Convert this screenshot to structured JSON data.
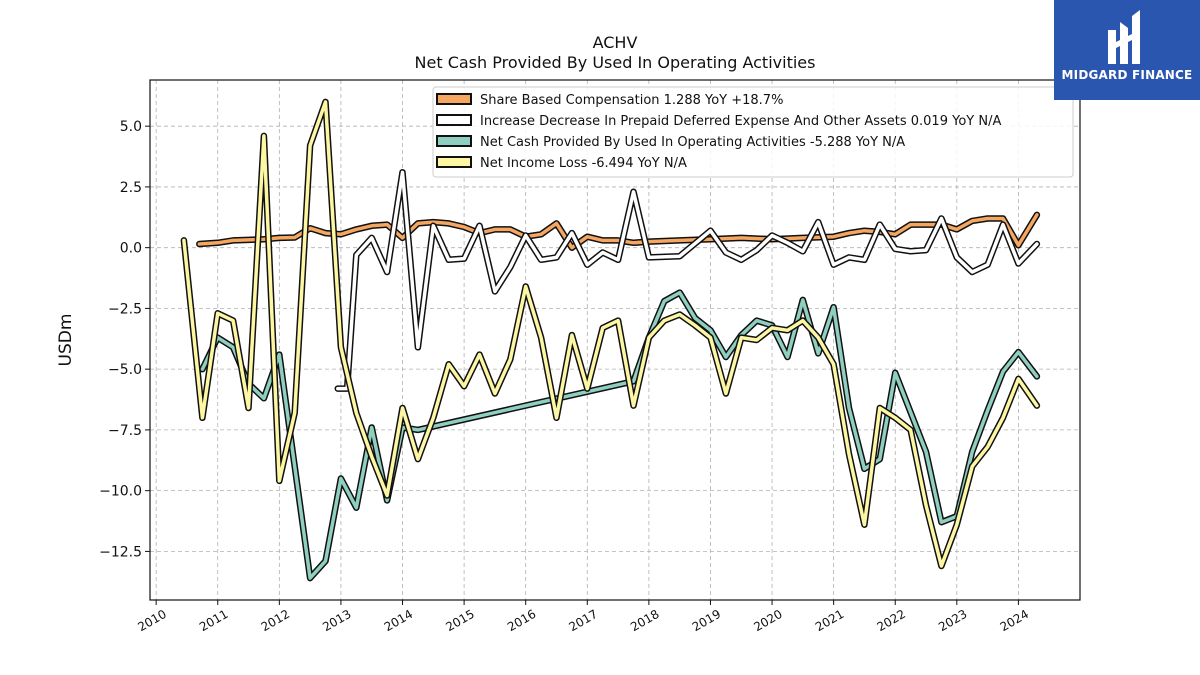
{
  "chart_data": {
    "type": "line",
    "title": "ACHV",
    "subtitle": "Net Cash Provided By Used In Operating Activities",
    "ylabel": "USDm",
    "xlabel": "",
    "xlim": [
      2009.9,
      2025.0
    ],
    "ylim": [
      -14.5,
      6.9
    ],
    "grid": true,
    "legend_position": "top-right",
    "x_ticks": [
      2010,
      2011,
      2012,
      2013,
      2014,
      2015,
      2016,
      2017,
      2018,
      2019,
      2020,
      2021,
      2022,
      2023,
      2024
    ],
    "x_tick_labels": [
      "2010",
      "2011",
      "2012",
      "2013",
      "2014",
      "2015",
      "2016",
      "2017",
      "2018",
      "2019",
      "2020",
      "2021",
      "2022",
      "2023",
      "2024"
    ],
    "y_ticks": [
      5.0,
      2.5,
      0.0,
      -2.5,
      -5.0,
      -7.5,
      -10.0,
      -12.5
    ],
    "y_tick_labels": [
      "5.0",
      "2.5",
      "0.0",
      "−2.5",
      "−5.0",
      "−7.5",
      "−10.0",
      "−12.5"
    ],
    "series": [
      {
        "name": "Share Based Compensation  1.288 YoY +18.7%",
        "color": "#f5a661",
        "points": [
          [
            2010.7,
            0.15
          ],
          [
            2011.0,
            0.2
          ],
          [
            2011.25,
            0.3
          ],
          [
            2011.5,
            0.32
          ],
          [
            2011.75,
            0.35
          ],
          [
            2012.0,
            0.4
          ],
          [
            2012.25,
            0.42
          ],
          [
            2012.5,
            0.8
          ],
          [
            2012.75,
            0.6
          ],
          [
            2013.0,
            0.55
          ],
          [
            2013.25,
            0.75
          ],
          [
            2013.5,
            0.9
          ],
          [
            2013.75,
            0.95
          ],
          [
            2014.0,
            0.4
          ],
          [
            2014.25,
            1.0
          ],
          [
            2014.5,
            1.05
          ],
          [
            2014.75,
            1.0
          ],
          [
            2015.0,
            0.85
          ],
          [
            2015.25,
            0.6
          ],
          [
            2015.5,
            0.75
          ],
          [
            2015.75,
            0.75
          ],
          [
            2016.0,
            0.45
          ],
          [
            2016.25,
            0.55
          ],
          [
            2016.5,
            1.0
          ],
          [
            2016.75,
            0.0
          ],
          [
            2017.0,
            0.45
          ],
          [
            2017.25,
            0.3
          ],
          [
            2017.5,
            0.3
          ],
          [
            2017.75,
            0.2
          ],
          [
            2018.0,
            0.25
          ],
          [
            2018.5,
            0.3
          ],
          [
            2019.0,
            0.35
          ],
          [
            2019.5,
            0.4
          ],
          [
            2020.0,
            0.35
          ],
          [
            2020.5,
            0.4
          ],
          [
            2021.0,
            0.45
          ],
          [
            2021.25,
            0.6
          ],
          [
            2021.5,
            0.7
          ],
          [
            2021.75,
            0.65
          ],
          [
            2022.0,
            0.55
          ],
          [
            2022.25,
            0.95
          ],
          [
            2022.5,
            0.95
          ],
          [
            2022.75,
            0.95
          ],
          [
            2023.0,
            0.75
          ],
          [
            2023.25,
            1.1
          ],
          [
            2023.5,
            1.2
          ],
          [
            2023.75,
            1.2
          ],
          [
            2024.0,
            0.1
          ],
          [
            2024.3,
            1.35
          ]
        ]
      },
      {
        "name": "Increase Decrease In Prepaid Deferred Expense And Other Assets  0.019 YoY N/A",
        "color": "#ffffff",
        "points": [
          [
            2012.95,
            -5.8
          ],
          [
            2013.1,
            -5.8
          ],
          [
            2013.25,
            -0.3
          ],
          [
            2013.5,
            0.4
          ],
          [
            2013.75,
            -1.0
          ],
          [
            2014.0,
            3.1
          ],
          [
            2014.25,
            -4.1
          ],
          [
            2014.5,
            0.9
          ],
          [
            2014.75,
            -0.5
          ],
          [
            2015.0,
            -0.45
          ],
          [
            2015.25,
            0.9
          ],
          [
            2015.5,
            -1.8
          ],
          [
            2015.75,
            -0.8
          ],
          [
            2016.0,
            0.5
          ],
          [
            2016.25,
            -0.5
          ],
          [
            2016.5,
            -0.4
          ],
          [
            2016.75,
            0.6
          ],
          [
            2017.0,
            -0.7
          ],
          [
            2017.25,
            -0.2
          ],
          [
            2017.5,
            -0.5
          ],
          [
            2017.75,
            2.3
          ],
          [
            2018.0,
            -0.4
          ],
          [
            2018.5,
            -0.35
          ],
          [
            2019.0,
            0.7
          ],
          [
            2019.25,
            -0.2
          ],
          [
            2019.5,
            -0.5
          ],
          [
            2019.75,
            -0.1
          ],
          [
            2020.0,
            0.5
          ],
          [
            2020.25,
            0.2
          ],
          [
            2020.5,
            -0.15
          ],
          [
            2020.75,
            1.05
          ],
          [
            2021.0,
            -0.7
          ],
          [
            2021.25,
            -0.4
          ],
          [
            2021.5,
            -0.5
          ],
          [
            2021.75,
            0.95
          ],
          [
            2022.0,
            -0.05
          ],
          [
            2022.25,
            -0.15
          ],
          [
            2022.5,
            -0.1
          ],
          [
            2022.75,
            1.2
          ],
          [
            2023.0,
            -0.4
          ],
          [
            2023.25,
            -1.0
          ],
          [
            2023.5,
            -0.7
          ],
          [
            2023.75,
            0.95
          ],
          [
            2024.0,
            -0.65
          ],
          [
            2024.3,
            0.15
          ]
        ]
      },
      {
        "name": "Net Cash Provided By Used In Operating Activities  -5.288 YoY N/A",
        "color": "#8ecfc0",
        "points": [
          [
            2010.75,
            -5.0
          ],
          [
            2011.0,
            -3.7
          ],
          [
            2011.25,
            -4.1
          ],
          [
            2011.5,
            -5.6
          ],
          [
            2011.75,
            -6.2
          ],
          [
            2012.0,
            -4.4
          ],
          [
            2012.5,
            -13.6
          ],
          [
            2012.75,
            -12.9
          ],
          [
            2013.0,
            -9.5
          ],
          [
            2013.25,
            -10.7
          ],
          [
            2013.5,
            -7.4
          ],
          [
            2013.75,
            -10.4
          ],
          [
            2014.0,
            -7.4
          ],
          [
            2014.25,
            -7.5
          ],
          [
            2017.75,
            -5.5
          ],
          [
            2018.0,
            -3.7
          ],
          [
            2018.25,
            -2.2
          ],
          [
            2018.5,
            -1.85
          ],
          [
            2018.75,
            -2.9
          ],
          [
            2019.0,
            -3.4
          ],
          [
            2019.25,
            -4.5
          ],
          [
            2019.5,
            -3.6
          ],
          [
            2019.75,
            -3.0
          ],
          [
            2020.0,
            -3.2
          ],
          [
            2020.25,
            -4.5
          ],
          [
            2020.5,
            -2.15
          ],
          [
            2020.75,
            -4.35
          ],
          [
            2021.0,
            -2.45
          ],
          [
            2021.25,
            -6.6
          ],
          [
            2021.5,
            -9.1
          ],
          [
            2021.75,
            -8.7
          ],
          [
            2022.0,
            -5.15
          ],
          [
            2022.5,
            -8.4
          ],
          [
            2022.75,
            -11.3
          ],
          [
            2023.0,
            -11.05
          ],
          [
            2023.25,
            -8.4
          ],
          [
            2023.5,
            -6.7
          ],
          [
            2023.75,
            -5.1
          ],
          [
            2024.0,
            -4.3
          ],
          [
            2024.3,
            -5.3
          ]
        ]
      },
      {
        "name": "Net Income Loss  -6.494 YoY N/A",
        "color": "#fdf6a3",
        "points": [
          [
            2010.45,
            0.3
          ],
          [
            2010.75,
            -7.0
          ],
          [
            2011.0,
            -2.7
          ],
          [
            2011.25,
            -3.0
          ],
          [
            2011.5,
            -6.6
          ],
          [
            2011.75,
            4.6
          ],
          [
            2012.0,
            -9.6
          ],
          [
            2012.25,
            -6.8
          ],
          [
            2012.5,
            4.2
          ],
          [
            2012.75,
            6.0
          ],
          [
            2013.0,
            -4.1
          ],
          [
            2013.25,
            -6.8
          ],
          [
            2013.5,
            -8.6
          ],
          [
            2013.75,
            -10.2
          ],
          [
            2014.0,
            -6.6
          ],
          [
            2014.25,
            -8.7
          ],
          [
            2014.5,
            -7.0
          ],
          [
            2014.75,
            -4.8
          ],
          [
            2015.0,
            -5.7
          ],
          [
            2015.25,
            -4.4
          ],
          [
            2015.5,
            -6.0
          ],
          [
            2015.75,
            -4.6
          ],
          [
            2016.0,
            -1.6
          ],
          [
            2016.25,
            -3.7
          ],
          [
            2016.5,
            -7.0
          ],
          [
            2016.75,
            -3.6
          ],
          [
            2017.0,
            -5.8
          ],
          [
            2017.25,
            -3.3
          ],
          [
            2017.5,
            -3.0
          ],
          [
            2017.75,
            -6.5
          ],
          [
            2018.0,
            -3.7
          ],
          [
            2018.25,
            -3.0
          ],
          [
            2018.5,
            -2.75
          ],
          [
            2018.75,
            -3.2
          ],
          [
            2019.0,
            -3.7
          ],
          [
            2019.25,
            -6.0
          ],
          [
            2019.5,
            -3.7
          ],
          [
            2019.75,
            -3.8
          ],
          [
            2020.0,
            -3.3
          ],
          [
            2020.25,
            -3.4
          ],
          [
            2020.5,
            -3.0
          ],
          [
            2020.75,
            -3.7
          ],
          [
            2021.0,
            -4.8
          ],
          [
            2021.25,
            -8.5
          ],
          [
            2021.5,
            -11.4
          ],
          [
            2021.75,
            -6.6
          ],
          [
            2022.0,
            -7.0
          ],
          [
            2022.25,
            -7.5
          ],
          [
            2022.5,
            -10.6
          ],
          [
            2022.75,
            -13.1
          ],
          [
            2023.0,
            -11.4
          ],
          [
            2023.25,
            -9.0
          ],
          [
            2023.5,
            -8.2
          ],
          [
            2023.75,
            -7.0
          ],
          [
            2024.0,
            -5.4
          ],
          [
            2024.3,
            -6.5
          ]
        ]
      }
    ]
  },
  "logo": {
    "text": "MIDGARD FINANCE",
    "background": "#2a56b0"
  }
}
